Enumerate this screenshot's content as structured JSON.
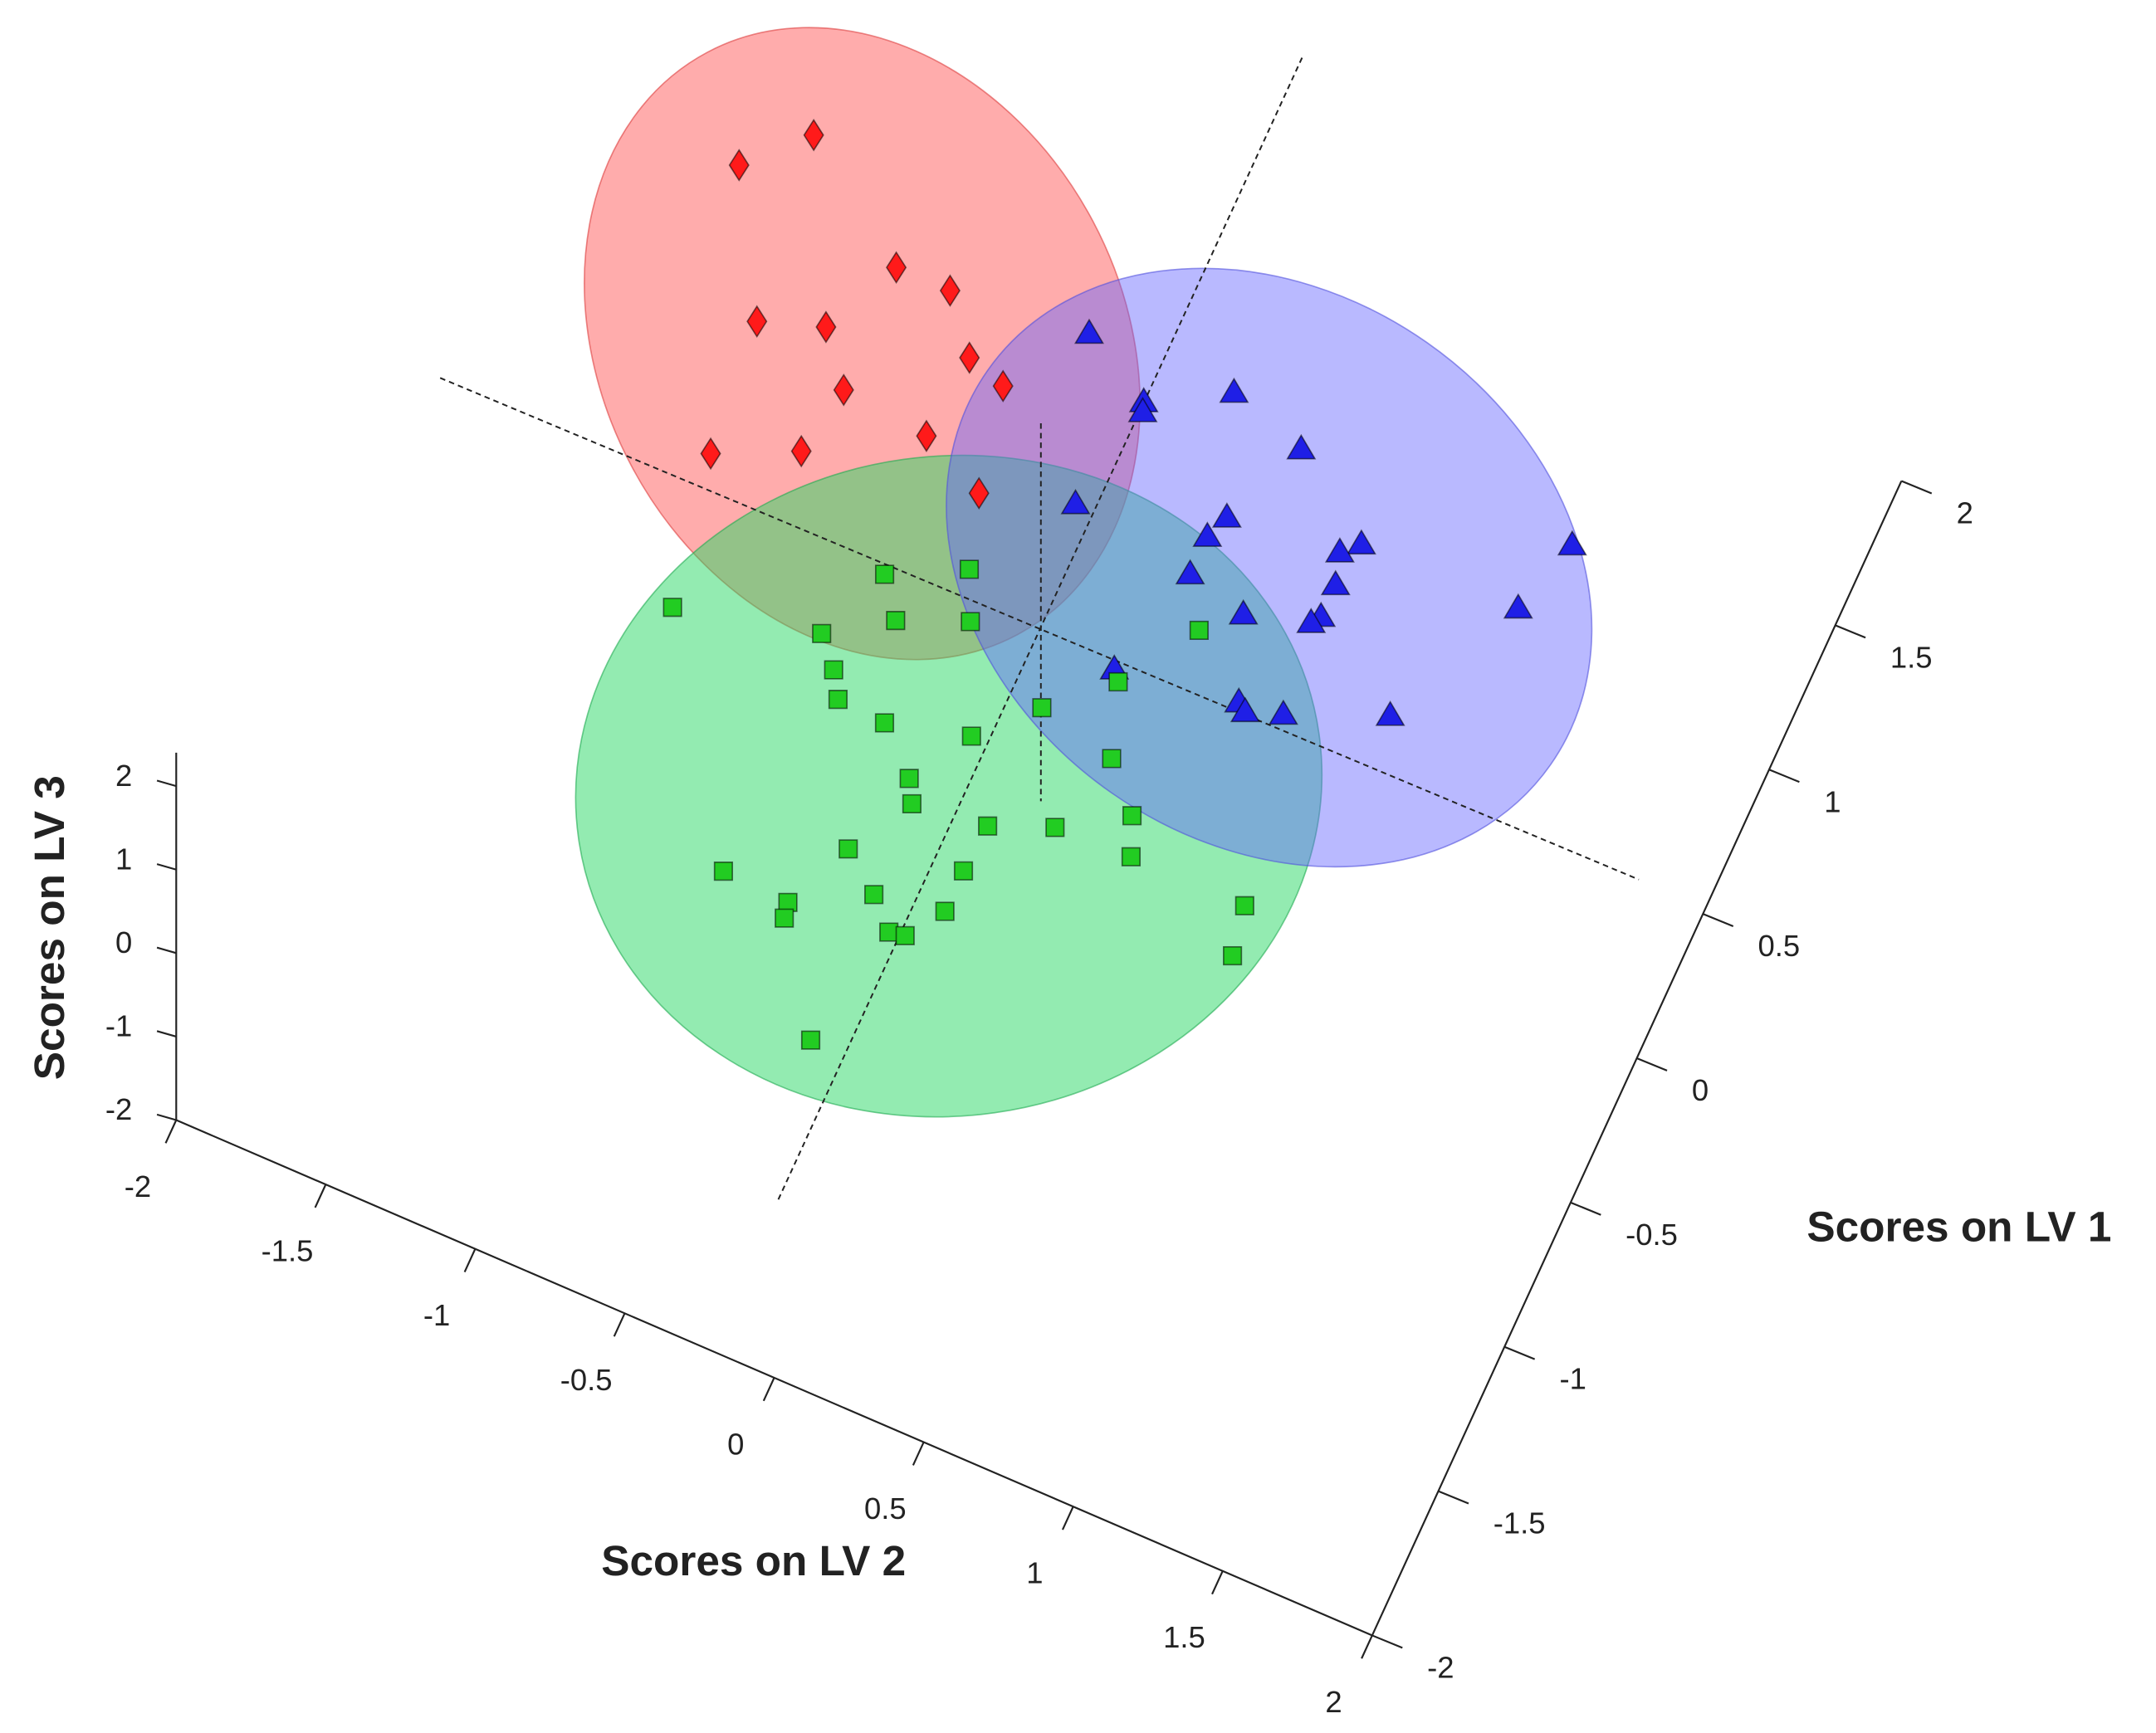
{
  "chart_data": {
    "type": "scatter3d",
    "xlabel": "Scores on LV 1",
    "ylabel": "Scores on LV 2",
    "zlabel": "Scores on LV 3",
    "xlim": [
      -2,
      2
    ],
    "ylim": [
      -2,
      2
    ],
    "zlim": [
      -2,
      2.4
    ],
    "xticks": [
      -2,
      -1.5,
      -1,
      -0.5,
      0,
      0.5,
      1,
      1.5,
      2
    ],
    "yticks": [
      -2,
      -1.5,
      -1,
      -0.5,
      0,
      0.5,
      1,
      1.5,
      2
    ],
    "zticks": [
      -2,
      -1,
      0,
      1,
      2
    ],
    "series": [
      {
        "color": "#ff1a1a",
        "marker": "diamond",
        "x": [
          0.92,
          0.74,
          0.64,
          0.64,
          0.31,
          0.38,
          0.47,
          0.43,
          0.22,
          -0.13,
          -0.01,
          0.19,
          0.09
        ],
        "y": [
          -1.16,
          -1.33,
          -0.76,
          -0.58,
          -1.08,
          -0.88,
          -0.44,
          -0.31,
          -0.75,
          -1.04,
          -0.79,
          -0.46,
          -0.24
        ],
        "z": [
          1,
          1,
          1,
          1,
          1,
          1,
          1,
          1,
          1,
          1,
          1,
          1,
          1
        ]
      },
      {
        "color": "#1f1fe6",
        "marker": "triangle",
        "x": [
          0.81,
          0.68,
          0.65,
          0.82,
          0.74,
          0.3,
          0.45,
          0.37,
          0.54,
          0.49,
          0.8,
          0.39,
          0.24,
          0.55,
          0.28,
          0.25,
          0.19,
          -0.13,
          -0.07,
          -0.09,
          -0.05,
          0.08
        ],
        "y": [
          -0.19,
          0.05,
          0.06,
          0.29,
          0.55,
          -0.01,
          0.43,
          0.4,
          0.84,
          0.79,
          1.43,
          0.82,
          0.4,
          1.36,
          0.82,
          0.8,
          0.6,
          0.31,
          0.7,
          0.73,
          0.84,
          1.14
        ],
        "z": [
          0.5,
          0.5,
          0.5,
          0.5,
          0.5,
          0.5,
          0.5,
          0.5,
          0.5,
          0.5,
          0.5,
          0.5,
          0.5,
          0.5,
          0.5,
          0.5,
          0.5,
          0.5,
          0.5,
          0.5,
          0.5,
          0.5
        ]
      },
      {
        "color": "#22cc22",
        "marker": "square",
        "x": [
          -0.26,
          0.1,
          0.22,
          -0.02,
          0.07,
          -0.15,
          0.33,
          -0.24,
          0.08,
          -0.32,
          -0.33,
          -0.09,
          -0.26,
          -0.15,
          -0.46,
          -0.53,
          -0.29,
          -0.5,
          -0.42,
          -0.74,
          -0.41,
          -0.96,
          -0.66,
          -0.84,
          -0.97,
          -1.02,
          -0.8,
          -0.41,
          -0.93,
          -0.92,
          -0.57,
          -1.34
        ],
        "y": [
          -1.11,
          -0.56,
          -0.33,
          -0.47,
          -0.26,
          -0.66,
          0.39,
          -0.58,
          0.23,
          -0.53,
          -0.37,
          0.05,
          -0.11,
          0.31,
          -0.23,
          -0.19,
          0.44,
          0.05,
          0.24,
          -0.31,
          0.49,
          -0.63,
          0.04,
          -0.18,
          -0.41,
          -0.4,
          0.04,
          0.87,
          -0.09,
          -0.04,
          0.9,
          -0.17
        ],
        "z": [
          -0.5,
          -0.5,
          -0.5,
          -0.5,
          -0.5,
          -0.5,
          -0.5,
          -0.5,
          -0.5,
          -0.5,
          -0.5,
          -0.5,
          -0.5,
          -0.5,
          -0.5,
          -0.5,
          -0.5,
          -0.5,
          -0.5,
          -0.5,
          -0.5,
          -0.5,
          -0.5,
          -0.5,
          -0.5,
          -0.5,
          -0.5,
          -0.5,
          -0.5,
          -0.5,
          -0.5,
          -0.5
        ]
      }
    ]
  }
}
